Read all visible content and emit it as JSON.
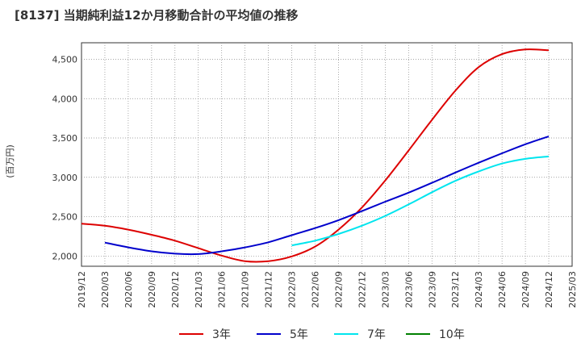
{
  "chart_data": {
    "type": "line",
    "title": "[8137]  当期純利益12か月移動合計の平均値の推移",
    "ylabel": "(百万円)",
    "xlabel": "",
    "ylim": [
      1870,
      4710
    ],
    "yticks": [
      2000,
      2500,
      3000,
      3500,
      4000,
      4500
    ],
    "ytick_labels": [
      "2,000",
      "2,500",
      "3,000",
      "3,500",
      "4,000",
      "4,500"
    ],
    "xticks": [
      "2019/12",
      "2020/03",
      "2020/06",
      "2020/09",
      "2020/12",
      "2021/03",
      "2021/06",
      "2021/09",
      "2021/12",
      "2022/03",
      "2022/06",
      "2022/09",
      "2022/12",
      "2023/03",
      "2023/06",
      "2023/09",
      "2023/12",
      "2024/03",
      "2024/06",
      "2024/09",
      "2024/12",
      "2025/03"
    ],
    "grid": true,
    "legend_position": "bottom",
    "series": [
      {
        "name": "3年",
        "color": "#dd0000",
        "x": [
          "2019/12",
          "2020/03",
          "2020/06",
          "2020/09",
          "2020/12",
          "2021/03",
          "2021/06",
          "2021/09",
          "2021/12",
          "2022/03",
          "2022/06",
          "2022/09",
          "2022/12",
          "2023/03",
          "2023/06",
          "2023/09",
          "2023/12",
          "2024/03",
          "2024/06",
          "2024/09",
          "2024/12"
        ],
        "values": [
          2410,
          2385,
          2335,
          2270,
          2195,
          2100,
          2005,
          1935,
          1935,
          1995,
          2120,
          2335,
          2615,
          2960,
          3340,
          3730,
          4100,
          4400,
          4565,
          4625,
          4615
        ]
      },
      {
        "name": "5年",
        "color": "#0000cc",
        "x": [
          "2020/03",
          "2020/06",
          "2020/09",
          "2020/12",
          "2021/03",
          "2021/06",
          "2021/09",
          "2021/12",
          "2022/03",
          "2022/06",
          "2022/09",
          "2022/12",
          "2023/03",
          "2023/06",
          "2023/09",
          "2023/12",
          "2024/03",
          "2024/06",
          "2024/09",
          "2024/12"
        ],
        "values": [
          2170,
          2110,
          2060,
          2030,
          2025,
          2060,
          2110,
          2175,
          2265,
          2355,
          2455,
          2570,
          2690,
          2805,
          2930,
          3060,
          3185,
          3305,
          3420,
          3520
        ]
      },
      {
        "name": "7年",
        "color": "#00e5ee",
        "x": [
          "2022/03",
          "2022/06",
          "2022/09",
          "2022/12",
          "2023/03",
          "2023/06",
          "2023/09",
          "2023/12",
          "2024/03",
          "2024/06",
          "2024/09",
          "2024/12"
        ],
        "values": [
          2135,
          2195,
          2280,
          2385,
          2510,
          2655,
          2810,
          2955,
          3075,
          3175,
          3235,
          3265
        ]
      },
      {
        "name": "10年",
        "color": "#008000",
        "x": [],
        "values": []
      }
    ]
  }
}
